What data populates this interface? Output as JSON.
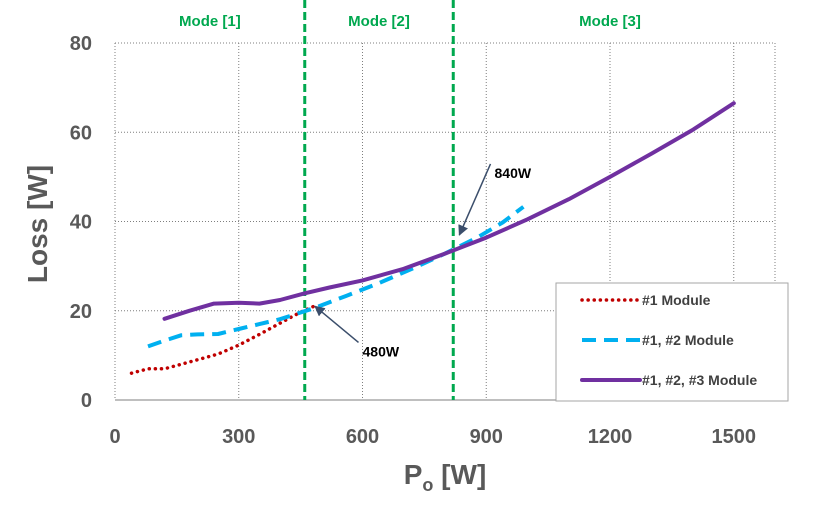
{
  "chart_data": {
    "type": "line",
    "xlabel_main": "P",
    "xlabel_sub": "o",
    "xlabel_unit": " [W]",
    "ylabel": "Loss [W]",
    "xlim": [
      0,
      1600
    ],
    "ylim": [
      0,
      80
    ],
    "xticks": [
      0,
      300,
      600,
      900,
      1200,
      1500
    ],
    "yticks": [
      0,
      20,
      40,
      60,
      80
    ],
    "grid": true,
    "legend_position": "bottom-right",
    "mode_lines": [
      {
        "x": 460,
        "color": "#00A84F"
      },
      {
        "x": 820,
        "color": "#00A84F"
      }
    ],
    "modes": [
      {
        "label": "Mode [1]",
        "x_center": 230
      },
      {
        "label": "Mode [2]",
        "x_center": 640
      },
      {
        "label": "Mode [3]",
        "x_center": 1200
      }
    ],
    "annotations": [
      {
        "text": "480W",
        "point": [
          480,
          21
        ],
        "label_at": [
          600,
          12
        ]
      },
      {
        "text": "840W",
        "point": [
          830,
          37
        ],
        "label_at": [
          920,
          52
        ]
      }
    ],
    "series": [
      {
        "name": "#1 Module",
        "color": "#C00000",
        "style": "dotted",
        "x": [
          40,
          80,
          120,
          160,
          200,
          250,
          300,
          350,
          400,
          450,
          490
        ],
        "y": [
          6,
          7,
          7,
          8,
          9,
          10.3,
          12.3,
          14.7,
          17.2,
          19.7,
          21.3
        ]
      },
      {
        "name": "#1, #2 Module",
        "color": "#00B0F0",
        "style": "dashed",
        "x": [
          80,
          120,
          160,
          200,
          250,
          300,
          350,
          400,
          480,
          560,
          640,
          720,
          800,
          880,
          940,
          990
        ],
        "y": [
          12,
          13.3,
          14.5,
          14.7,
          14.8,
          15.9,
          17,
          18.1,
          20.5,
          23.3,
          26.2,
          29.4,
          32.8,
          36.5,
          39.8,
          43.3
        ]
      },
      {
        "name": "#1, #2, #3 Module",
        "color": "#7030A0",
        "style": "solid",
        "x": [
          120,
          180,
          240,
          300,
          350,
          400,
          460,
          520,
          600,
          700,
          800,
          900,
          1000,
          1100,
          1200,
          1300,
          1400,
          1500
        ],
        "y": [
          18.2,
          20,
          21.6,
          21.8,
          21.6,
          22.4,
          23.9,
          25.2,
          26.8,
          29.4,
          32.8,
          36.4,
          40.5,
          45,
          50,
          55.2,
          60.5,
          66.5
        ]
      }
    ]
  }
}
